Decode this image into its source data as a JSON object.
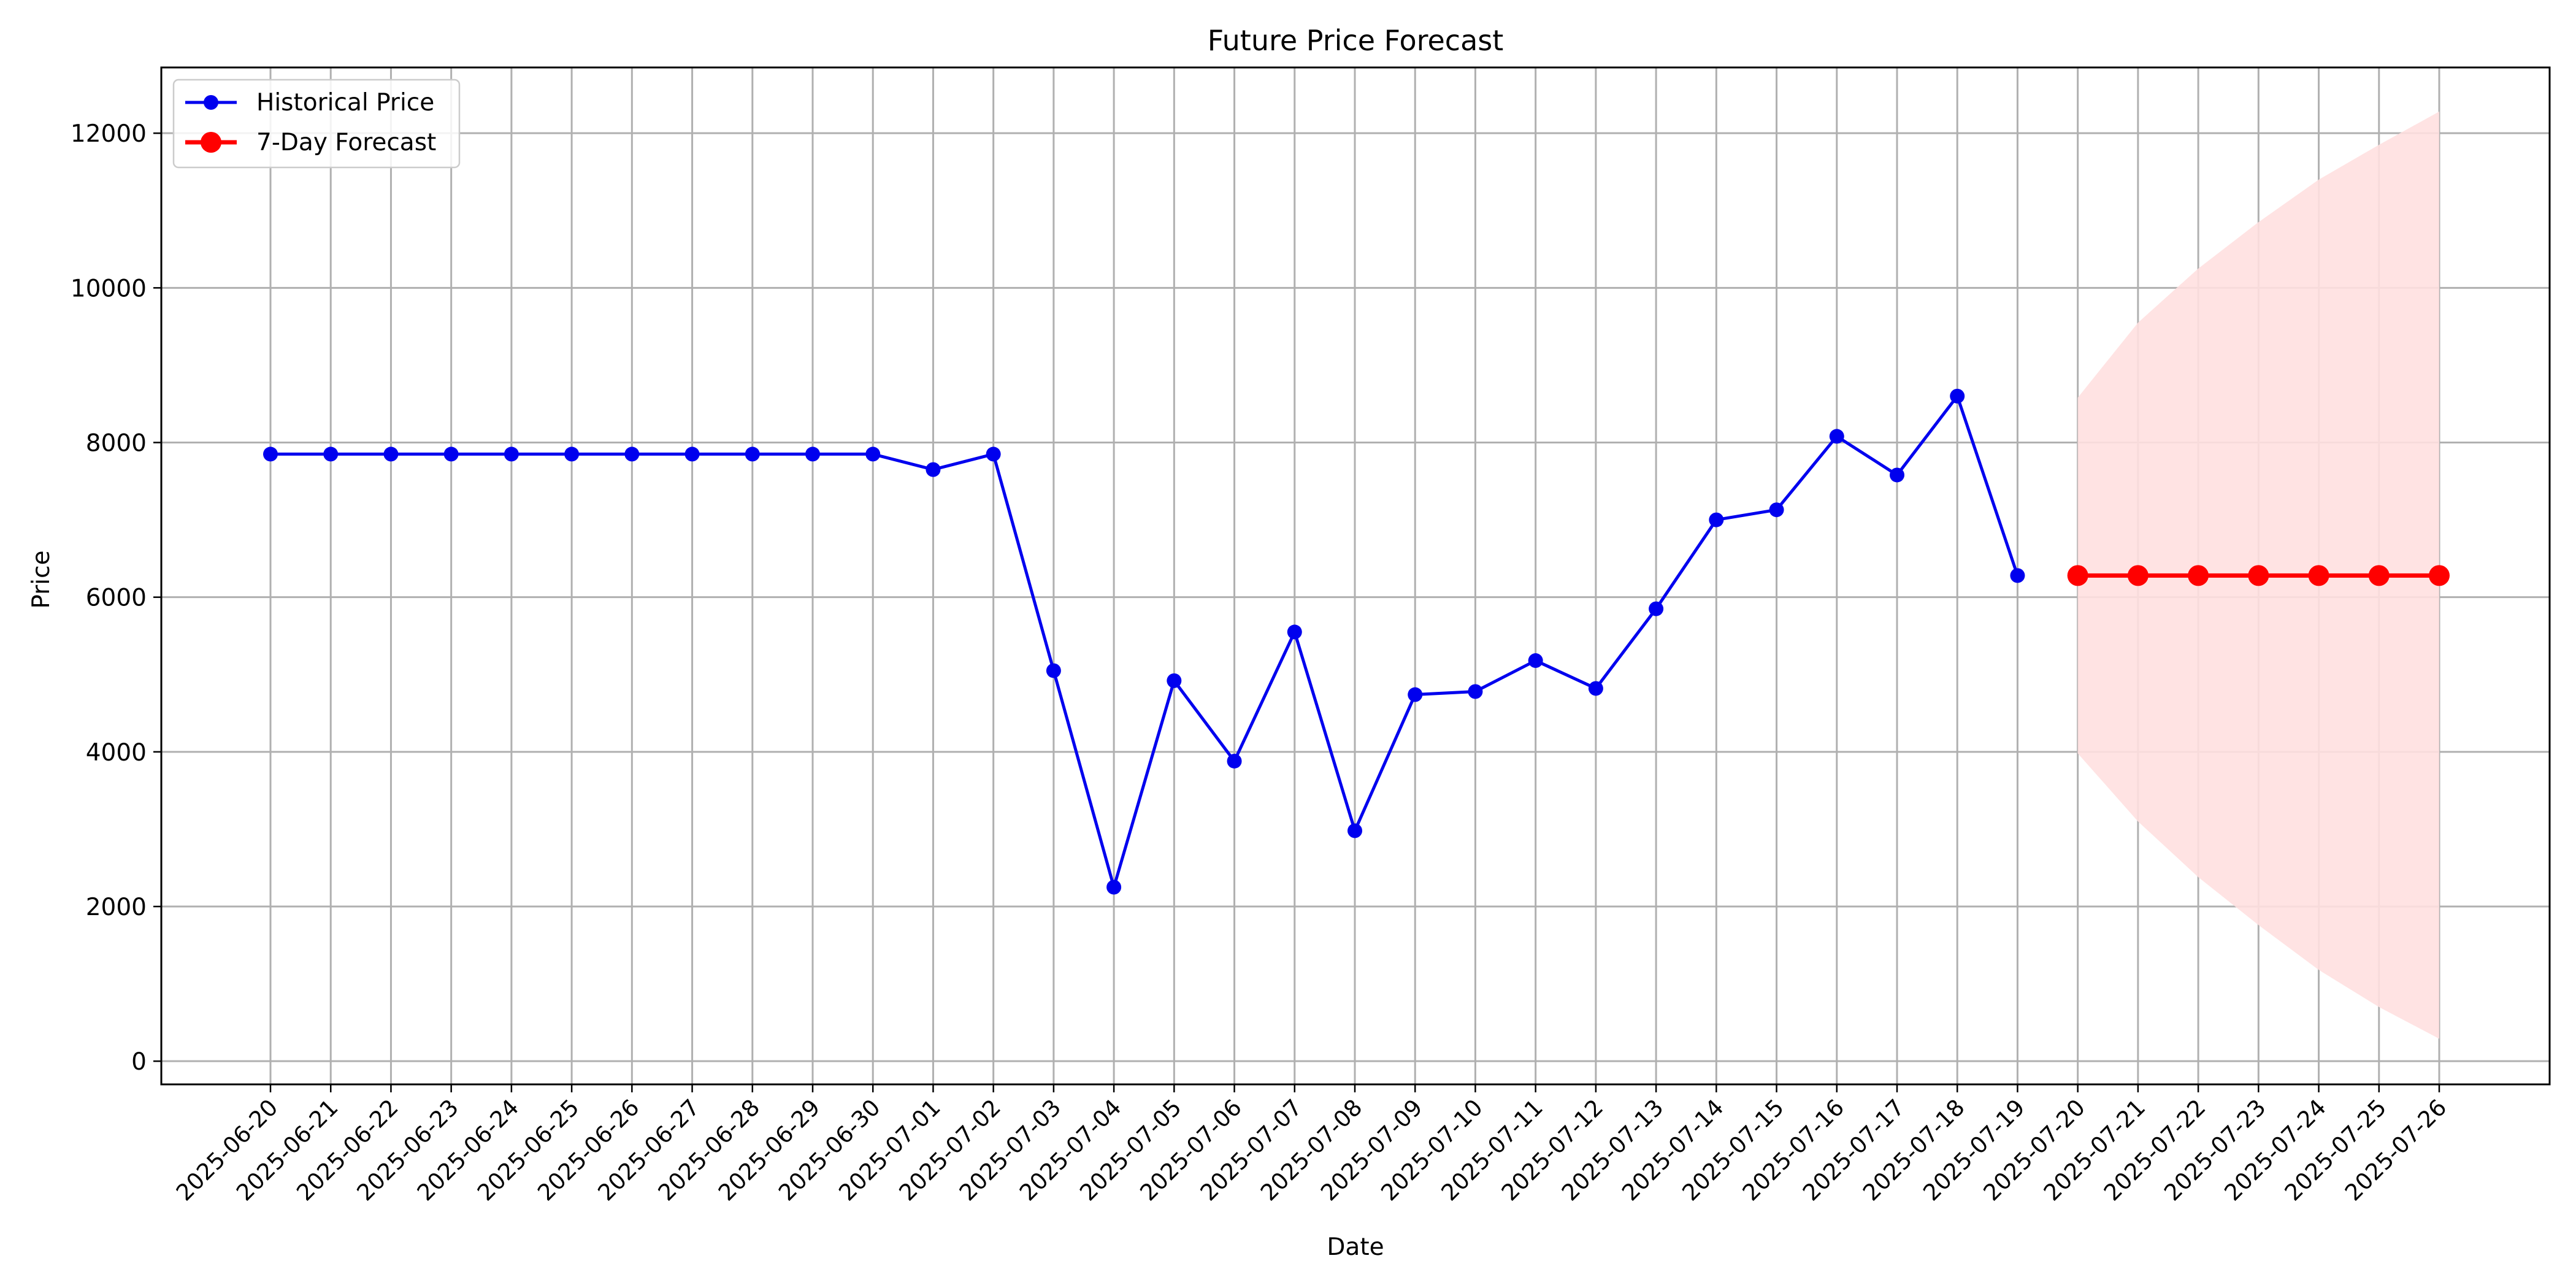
{
  "chart_data": {
    "type": "line",
    "title": "Future Price Forecast",
    "xlabel": "Date",
    "ylabel": "Price",
    "ylim": [
      -300,
      12850
    ],
    "yticks": [
      0,
      2000,
      4000,
      6000,
      8000,
      10000,
      12000
    ],
    "grid": true,
    "legend_position": "top-left",
    "x": [
      "2025-06-20",
      "2025-06-21",
      "2025-06-22",
      "2025-06-23",
      "2025-06-24",
      "2025-06-25",
      "2025-06-26",
      "2025-06-27",
      "2025-06-28",
      "2025-06-29",
      "2025-06-30",
      "2025-07-01",
      "2025-07-02",
      "2025-07-03",
      "2025-07-04",
      "2025-07-05",
      "2025-07-06",
      "2025-07-07",
      "2025-07-08",
      "2025-07-09",
      "2025-07-10",
      "2025-07-11",
      "2025-07-12",
      "2025-07-13",
      "2025-07-14",
      "2025-07-15",
      "2025-07-16",
      "2025-07-17",
      "2025-07-18",
      "2025-07-19",
      "2025-07-20",
      "2025-07-21",
      "2025-07-22",
      "2025-07-23",
      "2025-07-24",
      "2025-07-25",
      "2025-07-26"
    ],
    "series": [
      {
        "name": "Historical Price",
        "color": "#0000ee",
        "x": [
          "2025-06-20",
          "2025-06-21",
          "2025-06-22",
          "2025-06-23",
          "2025-06-24",
          "2025-06-25",
          "2025-06-26",
          "2025-06-27",
          "2025-06-28",
          "2025-06-29",
          "2025-06-30",
          "2025-07-01",
          "2025-07-02",
          "2025-07-03",
          "2025-07-04",
          "2025-07-05",
          "2025-07-06",
          "2025-07-07",
          "2025-07-08",
          "2025-07-09",
          "2025-07-10",
          "2025-07-11",
          "2025-07-12",
          "2025-07-13",
          "2025-07-14",
          "2025-07-15",
          "2025-07-16",
          "2025-07-17",
          "2025-07-18",
          "2025-07-19"
        ],
        "values": [
          7850,
          7850,
          7850,
          7850,
          7850,
          7850,
          7850,
          7850,
          7850,
          7850,
          7850,
          7650,
          7850,
          5050,
          2250,
          4920,
          3880,
          5550,
          2980,
          4740,
          4780,
          5180,
          4820,
          5850,
          7000,
          7130,
          8080,
          7580,
          8600,
          6280
        ]
      },
      {
        "name": "7-Day Forecast",
        "color": "#ff0000",
        "x": [
          "2025-07-20",
          "2025-07-21",
          "2025-07-22",
          "2025-07-23",
          "2025-07-24",
          "2025-07-25",
          "2025-07-26"
        ],
        "values": [
          6280,
          6280,
          6280,
          6280,
          6280,
          6280,
          6280
        ]
      }
    ],
    "confidence_band": {
      "color": "#ffe0e0",
      "x": [
        "2025-07-20",
        "2025-07-21",
        "2025-07-22",
        "2025-07-23",
        "2025-07-24",
        "2025-07-25",
        "2025-07-26"
      ],
      "upper": [
        8580,
        9550,
        10250,
        10850,
        11400,
        11850,
        12280
      ],
      "lower": [
        3980,
        3100,
        2380,
        1760,
        1180,
        700,
        290
      ]
    }
  }
}
